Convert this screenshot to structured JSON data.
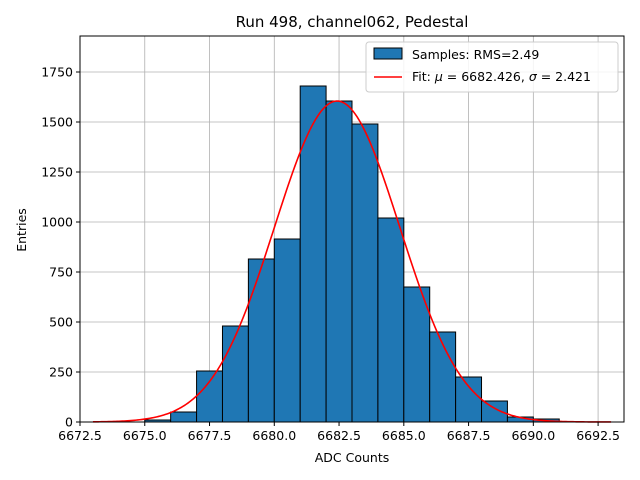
{
  "chart_data": {
    "type": "bar",
    "title": "Run 498, channel062, Pedestal",
    "xlabel": "ADC Counts",
    "ylabel": "Entries",
    "xlim": [
      6672.5,
      6693.5
    ],
    "ylim": [
      0,
      1930
    ],
    "xticks": [
      6672.5,
      6675.0,
      6677.5,
      6680.0,
      6682.5,
      6685.0,
      6687.5,
      6690.0,
      6692.5
    ],
    "xtick_labels": [
      "6672.5",
      "6675.0",
      "6677.5",
      "6680.0",
      "6682.5",
      "6685.0",
      "6687.5",
      "6690.0",
      "6692.5"
    ],
    "yticks": [
      0,
      250,
      500,
      750,
      1000,
      1250,
      1500,
      1750
    ],
    "ytick_labels": [
      "0",
      "250",
      "500",
      "750",
      "1000",
      "1250",
      "1500",
      "1750"
    ],
    "grid": true,
    "legend_position": "top-right",
    "series": [
      {
        "name": "Samples: RMS=2.49",
        "type": "histogram",
        "color": "#1f77b4",
        "edgecolor": "#000000",
        "bin_edges": [
          6675,
          6676,
          6677,
          6678,
          6679,
          6680,
          6681,
          6682,
          6683,
          6684,
          6685,
          6686,
          6687,
          6688,
          6689,
          6690,
          6691
        ],
        "values": [
          10,
          50,
          255,
          480,
          815,
          915,
          1680,
          1605,
          1490,
          1020,
          675,
          450,
          225,
          105,
          25,
          15
        ]
      },
      {
        "name": "Fit: $\\mu$ = 6682.426, $\\sigma$ = 2.421",
        "type": "line",
        "color": "#ff0000",
        "mu": 6682.426,
        "sigma": 2.421,
        "amplitude": 1605,
        "x_range": [
          6673,
          6693
        ]
      }
    ]
  }
}
